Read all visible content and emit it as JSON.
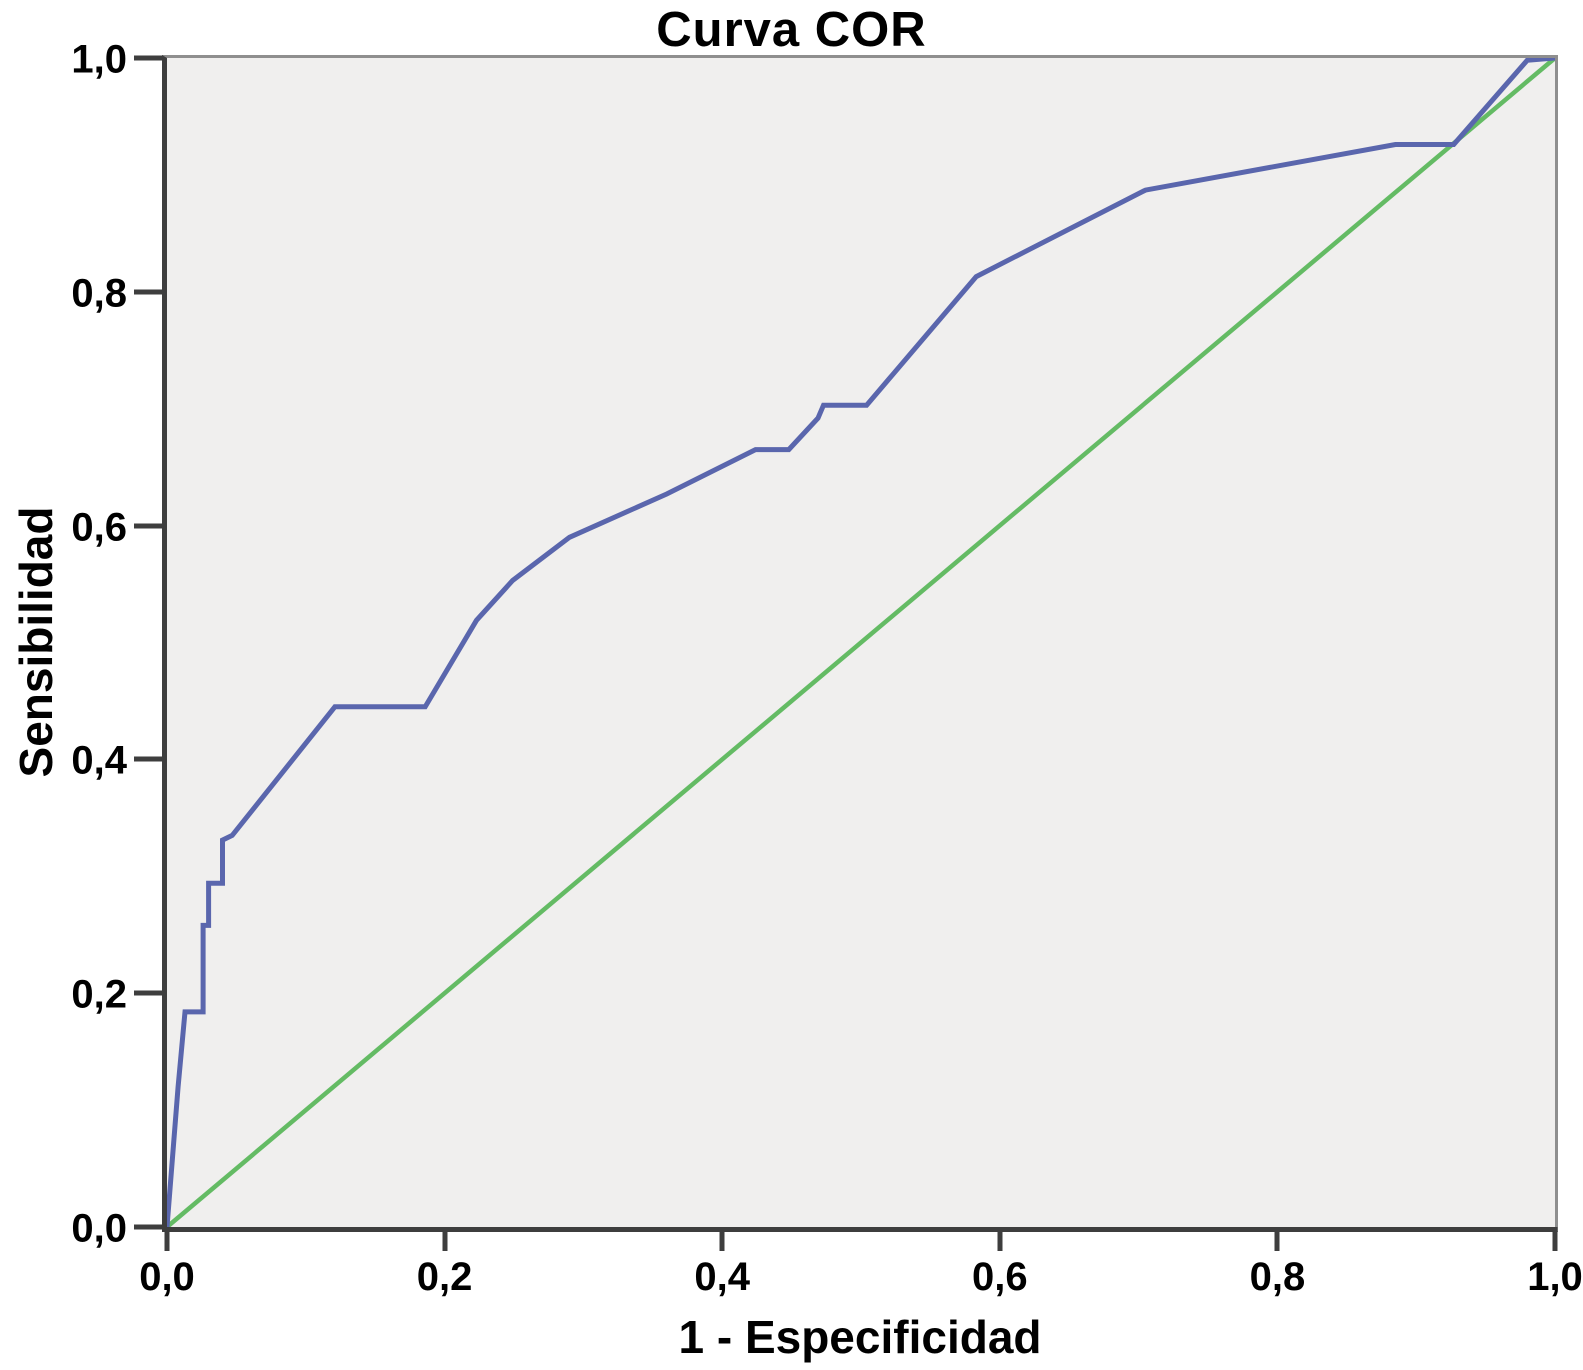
{
  "chart_data": {
    "type": "line",
    "title": "Curva COR",
    "xlabel": "1 - Especificidad",
    "ylabel": "Sensibilidad",
    "xlim": [
      0,
      1
    ],
    "ylim": [
      0,
      1
    ],
    "grid": false,
    "legend_position": "none",
    "tick_values": [
      0,
      0.2,
      0.4,
      0.6,
      0.8,
      1
    ],
    "x_tick_labels": [
      "0,0",
      "0,2",
      "0,4",
      "0,6",
      "0,8",
      "1,0"
    ],
    "y_tick_labels": [
      "0,0",
      "0,2",
      "0,4",
      "0,6",
      "0,8",
      "1,0"
    ],
    "colors": {
      "roc_curve": "#5a66ad",
      "reference_line": "#64bb64",
      "axis": "#3e3e3e",
      "frame": "#8f8f8f",
      "plot_bg": "#f0efee",
      "text": "#000000"
    },
    "series": [
      {
        "name": "roc_curve",
        "slug": "roc-curve-line",
        "color": "#5a66ad",
        "stroke_width": 5,
        "points": [
          [
            0.0,
            0.0
          ],
          [
            0.008,
            0.12
          ],
          [
            0.013,
            0.184
          ],
          [
            0.026,
            0.184
          ],
          [
            0.026,
            0.258
          ],
          [
            0.03,
            0.258
          ],
          [
            0.03,
            0.294
          ],
          [
            0.04,
            0.294
          ],
          [
            0.04,
            0.331
          ],
          [
            0.047,
            0.335
          ],
          [
            0.121,
            0.445
          ],
          [
            0.186,
            0.445
          ],
          [
            0.223,
            0.519
          ],
          [
            0.249,
            0.553
          ],
          [
            0.29,
            0.59
          ],
          [
            0.36,
            0.627
          ],
          [
            0.424,
            0.665
          ],
          [
            0.448,
            0.665
          ],
          [
            0.469,
            0.692
          ],
          [
            0.473,
            0.703
          ],
          [
            0.504,
            0.703
          ],
          [
            0.583,
            0.813
          ],
          [
            0.705,
            0.887
          ],
          [
            0.885,
            0.926
          ],
          [
            0.927,
            0.926
          ],
          [
            0.98,
            0.998
          ],
          [
            1.0,
            1.0
          ]
        ]
      },
      {
        "name": "reference_diagonal",
        "slug": "reference-diagonal-line",
        "color": "#64bb64",
        "stroke_width": 4.5,
        "points": [
          [
            0.0,
            0.0
          ],
          [
            1.0,
            1.0
          ]
        ]
      }
    ]
  }
}
